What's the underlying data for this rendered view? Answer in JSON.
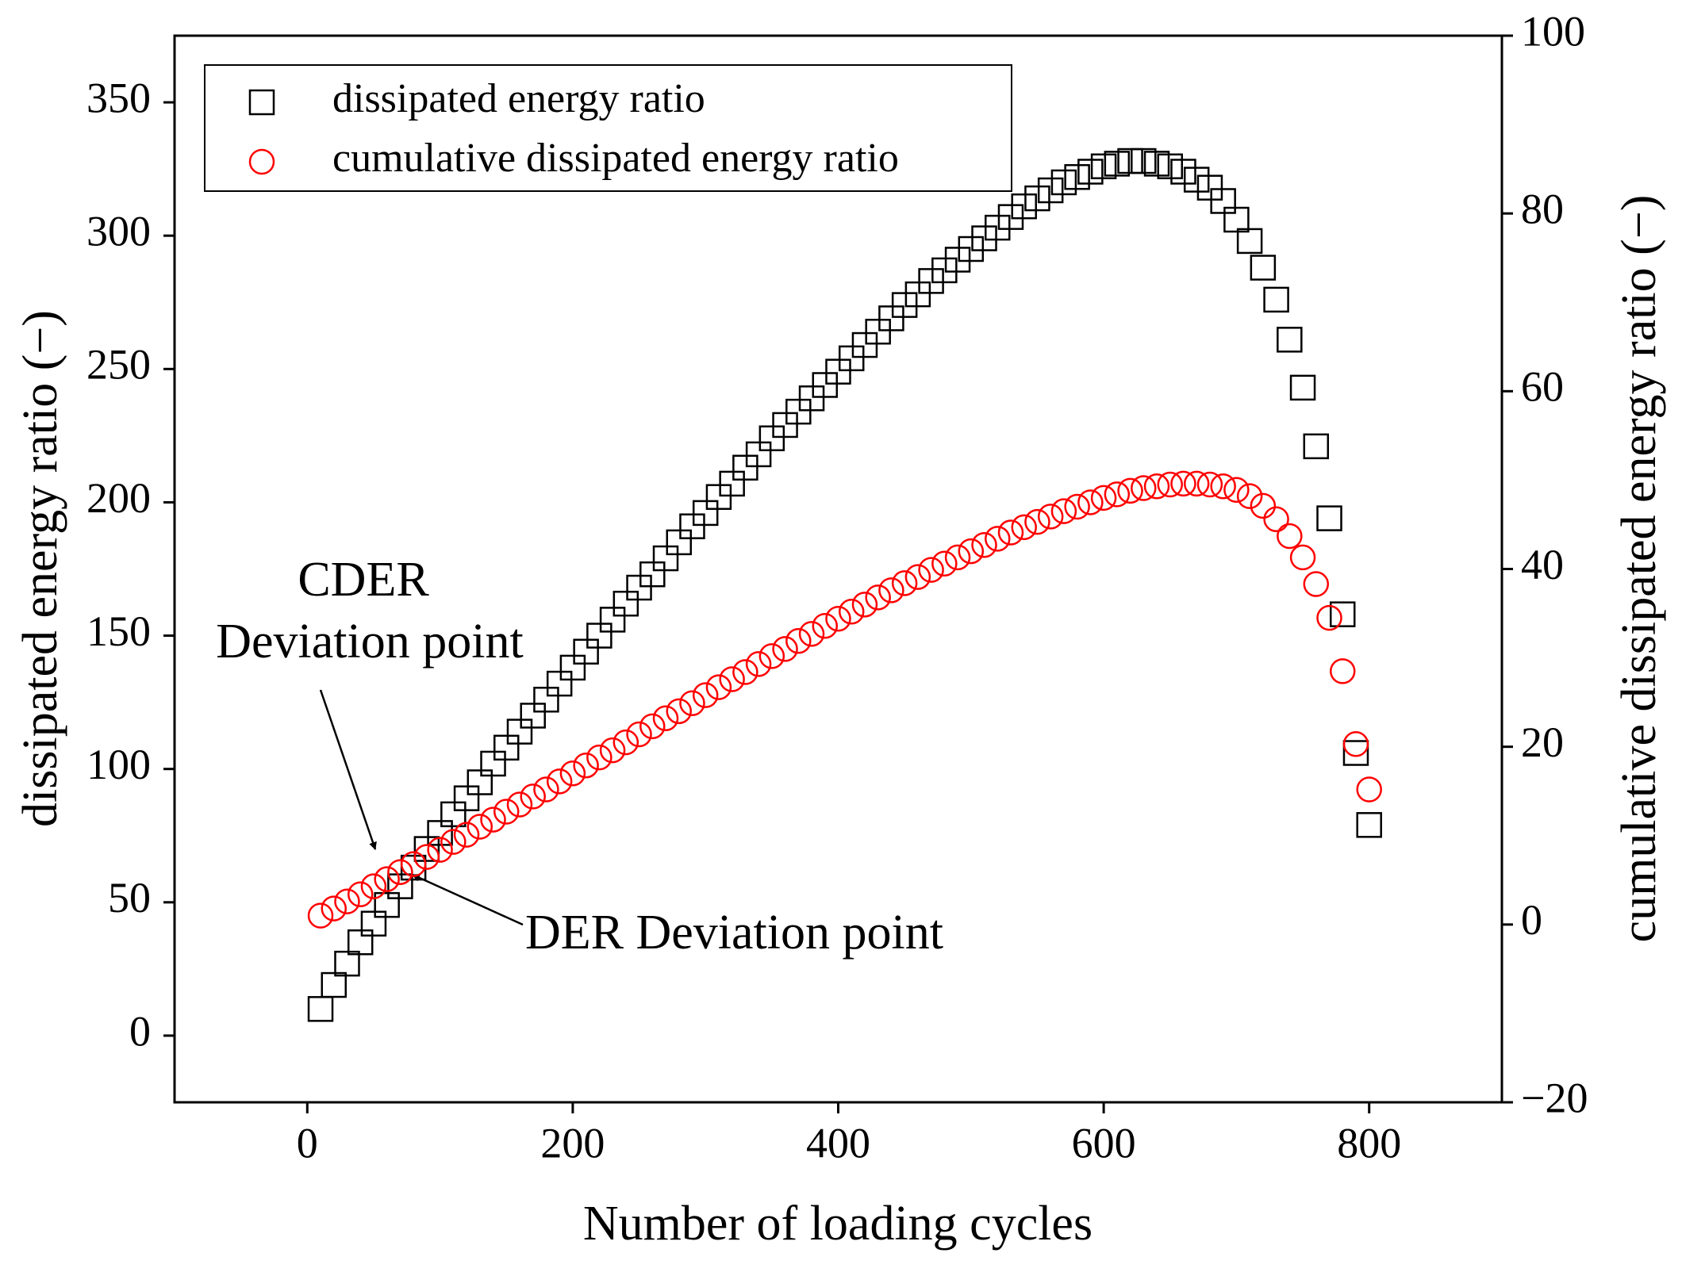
{
  "chart_data": {
    "type": "scatter",
    "xlabel": "Number of loading cycles",
    "ylabel": "dissipated energy ratio (−)",
    "y2label": "cumulative dissipated energy ratio (−)",
    "xlim": [
      -100,
      900
    ],
    "ylim": [
      -25,
      375
    ],
    "y2lim": [
      -20,
      100
    ],
    "xticks": [
      0,
      200,
      400,
      600,
      800
    ],
    "yticks": [
      0,
      50,
      100,
      150,
      200,
      250,
      300,
      350
    ],
    "y2ticks": [
      {
        "value": -20,
        "label": "−20"
      },
      0,
      20,
      40,
      60,
      80,
      100
    ],
    "legend": "upper left",
    "x": [
      10,
      20,
      30,
      40,
      50,
      60,
      70,
      80,
      90,
      100,
      110,
      120,
      130,
      140,
      150,
      160,
      170,
      180,
      190,
      200,
      210,
      220,
      230,
      240,
      250,
      260,
      270,
      280,
      290,
      300,
      310,
      320,
      330,
      340,
      350,
      360,
      370,
      380,
      390,
      400,
      410,
      420,
      430,
      440,
      450,
      460,
      470,
      480,
      490,
      500,
      510,
      520,
      530,
      540,
      550,
      560,
      570,
      580,
      590,
      600,
      610,
      620,
      630,
      640,
      650,
      660,
      670,
      680,
      690,
      700,
      710,
      720,
      730,
      740,
      750,
      760,
      770,
      780,
      790,
      800
    ],
    "series": [
      {
        "name": "dissipated energy ratio",
        "color": "#000000",
        "marker": "square",
        "values": [
          10,
          19,
          27,
          35,
          42,
          49,
          56,
          63,
          70,
          76,
          83,
          89,
          95,
          102,
          108,
          114,
          120,
          126,
          132,
          138,
          144,
          150,
          156,
          162,
          168,
          173,
          179,
          185,
          191,
          196,
          202,
          207,
          213,
          218,
          224,
          229,
          234,
          239,
          244,
          249,
          254,
          259,
          264,
          269,
          274,
          278,
          283,
          287,
          291,
          295,
          299,
          303,
          307,
          311,
          314,
          317,
          320,
          322,
          324,
          326,
          327,
          328,
          328,
          327,
          326,
          324,
          321,
          318,
          313,
          306,
          298,
          288,
          276,
          261,
          243,
          221,
          194,
          158,
          106,
          79
        ]
      },
      {
        "name": "cumulative dissipated energy ratio",
        "color": "#ff0000",
        "marker": "circle",
        "axis": "y2",
        "values": [
          1.0,
          1.8,
          2.6,
          3.4,
          4.3,
          5.1,
          5.9,
          6.8,
          7.6,
          8.4,
          9.3,
          10.1,
          11.0,
          11.8,
          12.7,
          13.5,
          14.4,
          15.2,
          16.1,
          17.0,
          17.9,
          18.8,
          19.6,
          20.5,
          21.4,
          22.3,
          23.2,
          24.0,
          24.9,
          25.8,
          26.7,
          27.6,
          28.4,
          29.3,
          30.2,
          31.0,
          31.9,
          32.7,
          33.6,
          34.4,
          35.2,
          36.0,
          36.8,
          37.6,
          38.4,
          39.1,
          39.9,
          40.6,
          41.3,
          42.0,
          42.7,
          43.4,
          44.1,
          44.7,
          45.3,
          45.9,
          46.5,
          47.0,
          47.5,
          48.0,
          48.4,
          48.8,
          49.1,
          49.3,
          49.5,
          49.6,
          49.6,
          49.5,
          49.3,
          48.9,
          48.2,
          47.1,
          45.6,
          43.7,
          41.3,
          38.3,
          34.5,
          28.5,
          20.3,
          15.2
        ]
      }
    ],
    "annotations": [
      {
        "lines": [
          "CDER",
          "Deviation point"
        ]
      },
      {
        "lines": [
          "DER Deviation point"
        ]
      }
    ]
  }
}
